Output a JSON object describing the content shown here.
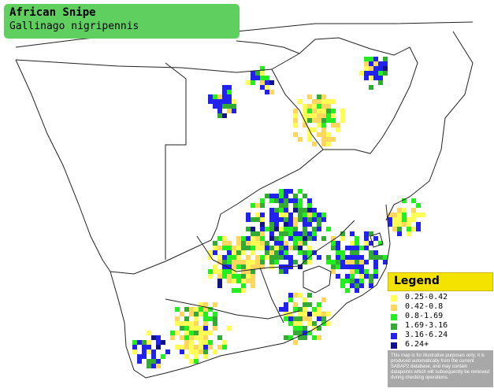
{
  "title": {
    "common_name": "African Snipe",
    "scientific_name": "Gallinago nigripennis"
  },
  "legend": {
    "title": "Legend",
    "items": [
      {
        "label": "0.25-0.42",
        "color": "#ffff55"
      },
      {
        "label": "0.42-0.8",
        "color": "#ffd75f"
      },
      {
        "label": "0.8-1.69",
        "color": "#22ee22"
      },
      {
        "label": "1.69-3.16",
        "color": "#33aa33"
      },
      {
        "label": "3.16-6.24",
        "color": "#2222ee"
      },
      {
        "label": "6.24+",
        "color": "#111188"
      }
    ],
    "disclaimer": "This map is for illustrative purposes only; it is produced automatically from the current SABAP2 database, and may contain datapoints which will subsequently be removed during checking operations."
  },
  "colors": {
    "title_box": "#5fd05f",
    "legend_header": "#f4e200",
    "border_lines": "#222222"
  }
}
